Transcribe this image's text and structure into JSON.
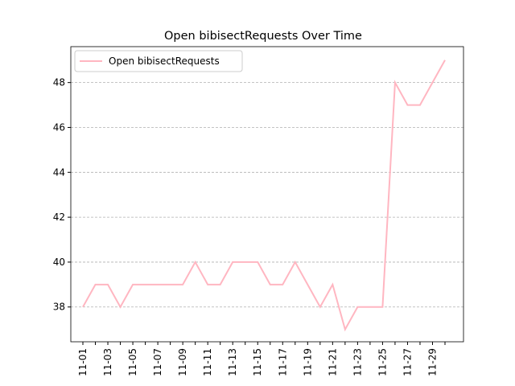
{
  "chart_data": {
    "type": "line",
    "title": "Open bibisectRequests Over Time",
    "categories": [
      "11-01",
      null,
      "11-03",
      null,
      "11-05",
      null,
      "11-07",
      null,
      "11-09",
      null,
      "11-11",
      null,
      "11-13",
      null,
      "11-15",
      null,
      "11-17",
      null,
      "11-19",
      null,
      "11-21",
      null,
      "11-23",
      null,
      "11-25",
      null,
      "11-27",
      null,
      "11-29",
      null
    ],
    "series": [
      {
        "name": "Open bibisectRequests",
        "color": "#ffb6c1",
        "values": [
          38,
          39,
          39,
          38,
          39,
          39,
          39,
          39,
          39,
          40,
          39,
          39,
          40,
          40,
          40,
          39,
          39,
          40,
          39,
          38,
          39,
          37,
          38,
          38,
          38,
          48,
          47,
          47,
          48,
          49
        ]
      }
    ],
    "ylim": [
      36.45,
      49.6
    ],
    "yticks": [
      38,
      40,
      42,
      44,
      46,
      48
    ],
    "grid": true,
    "legend": "upper left"
  }
}
